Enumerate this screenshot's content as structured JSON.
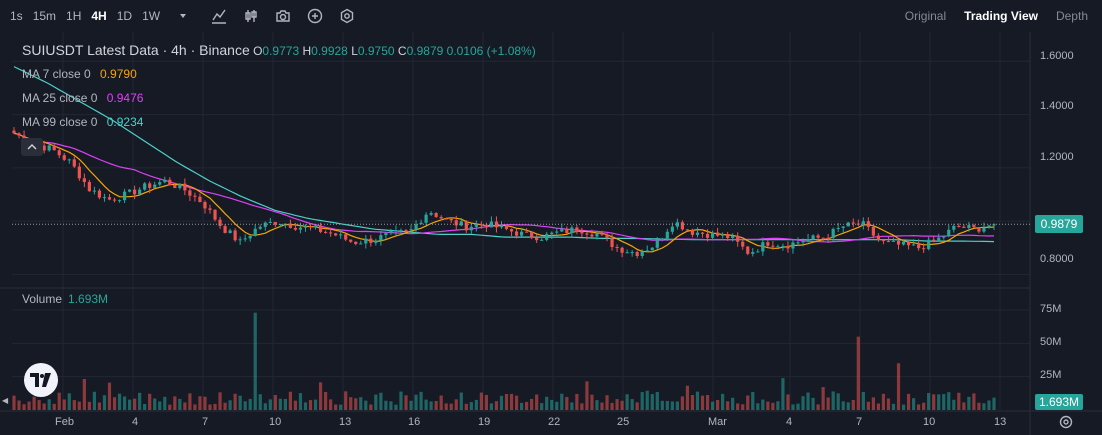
{
  "toolbar": {
    "timeframes": [
      "1s",
      "15m",
      "1H",
      "4H",
      "1D",
      "1W"
    ],
    "active_timeframe": "4H",
    "icons": [
      "chevron-down-icon",
      "indicators-icon",
      "compare-icon",
      "screenshot-icon",
      "add-icon",
      "settings-icon"
    ]
  },
  "view_tabs": {
    "original": "Original",
    "trading_view": "Trading View",
    "depth": "Depth",
    "active": "Trading View"
  },
  "legend": {
    "title": "SUIUSDT Latest Data · 4h · Binance",
    "o_key": "O",
    "o": "0.9773",
    "h_key": "H",
    "h": "0.9928",
    "l_key": "L",
    "l": "0.9750",
    "c_key": "C",
    "c": "0.9879",
    "change": "0.0106 (+1.08%)",
    "ma7_label": "MA 7 close 0",
    "ma7_value": "0.9790",
    "ma25_label": "MA 25 close 0",
    "ma25_value": "0.9476",
    "ma99_label": "MA 99 close 0",
    "ma99_value": "0.9234"
  },
  "volume": {
    "label": "Volume",
    "value": "1.693M"
  },
  "price_axis": [
    "1.6000",
    "1.4000",
    "1.2000",
    "0.8000"
  ],
  "volume_axis": [
    "75M",
    "50M",
    "25M"
  ],
  "last_price": "0.9879",
  "last_volume": "1.693M",
  "time_axis": [
    "Feb",
    "4",
    "7",
    "10",
    "13",
    "16",
    "19",
    "22",
    "25",
    "Mar",
    "4",
    "7",
    "10",
    "13"
  ],
  "colors": {
    "up": "#26a69a",
    "down": "#ef5350",
    "ma7": "#f7a600",
    "ma25": "#e040fb",
    "ma99": "#4dd0c8",
    "bg": "#161a25"
  },
  "chart_data": {
    "type": "candlestick",
    "ylim": [
      0.76,
      1.68
    ],
    "volume_ylim": [
      0,
      90
    ],
    "anchors": [
      1.33,
      1.29,
      1.27,
      1.22,
      1.12,
      1.08,
      1.1,
      1.13,
      1.15,
      1.12,
      1.07,
      0.98,
      0.92,
      0.98,
      1.0,
      0.98,
      0.97,
      0.95,
      0.92,
      0.93,
      0.95,
      0.96,
      1.04,
      1.0,
      0.98,
      0.99,
      0.97,
      0.95,
      0.94,
      0.96,
      0.97,
      0.95,
      0.9,
      0.88,
      0.91,
      1.0,
      0.96,
      0.95,
      0.94,
      0.88,
      0.92,
      0.91,
      0.93,
      0.94,
      0.98,
      0.99,
      0.92,
      0.91,
      0.9,
      0.93,
      0.98,
      0.97,
      0.99
    ],
    "ma99_anchors": [
      1.58,
      1.52,
      1.45,
      1.38,
      1.3,
      1.22,
      1.15,
      1.09,
      1.04,
      1.01,
      0.99,
      0.97,
      0.96,
      0.95,
      0.95,
      0.94,
      0.94,
      0.94,
      0.935,
      0.935,
      0.932,
      0.93,
      0.93,
      0.93,
      0.93,
      0.93,
      0.93,
      0.93,
      0.925,
      0.925,
      0.923
    ],
    "volume_peaks": [
      {
        "index": 12,
        "value": 73
      },
      {
        "index": 42,
        "value": 55
      },
      {
        "index": 44,
        "value": 35
      }
    ]
  }
}
